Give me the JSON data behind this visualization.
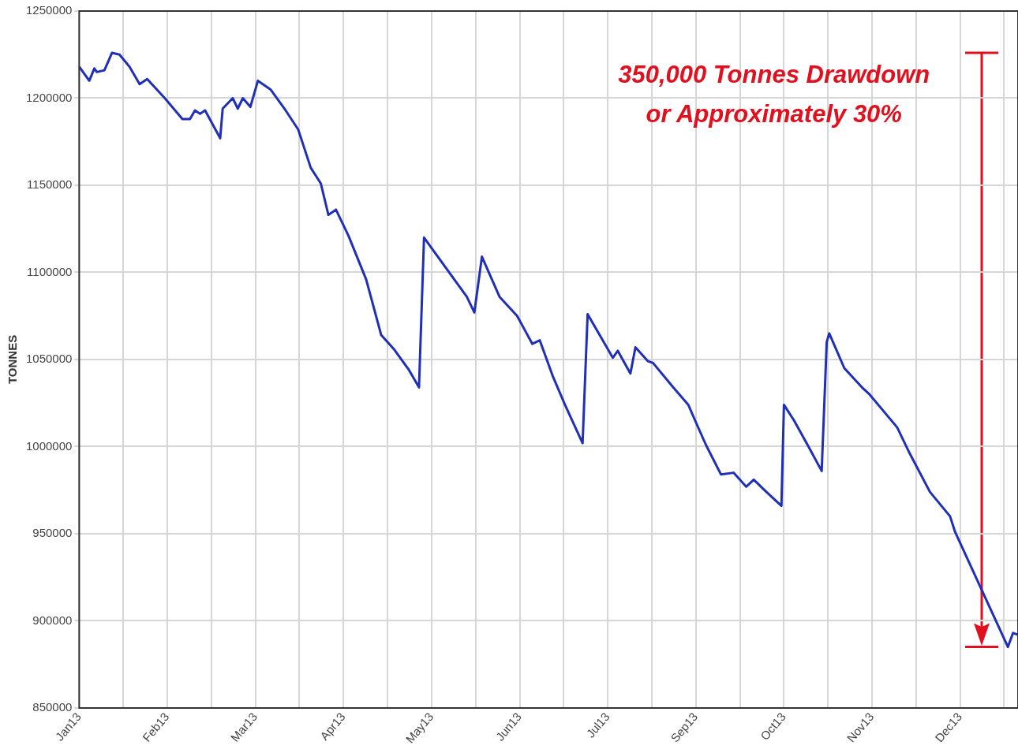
{
  "chart_data": {
    "type": "line",
    "ylabel": "TONNES",
    "xlim": [
      "2013-01-01",
      "2014-01-09"
    ],
    "xticks": [
      {
        "value": "2013-01-01",
        "label": "Jan13"
      },
      {
        "value": "2013-01-18T12:00",
        "label": null
      },
      {
        "value": "2013-02-05",
        "label": "Feb13"
      },
      {
        "value": "2013-02-22T12:00",
        "label": null
      },
      {
        "value": "2013-03-12",
        "label": "Mar13"
      },
      {
        "value": "2013-03-29T12:00",
        "label": null
      },
      {
        "value": "2013-04-16",
        "label": "Apr13"
      },
      {
        "value": "2013-05-03T12:00",
        "label": null
      },
      {
        "value": "2013-05-21",
        "label": "May13"
      },
      {
        "value": "2013-06-07T12:00",
        "label": null
      },
      {
        "value": "2013-06-25",
        "label": "Jun13"
      },
      {
        "value": "2013-07-12T12:00",
        "label": null
      },
      {
        "value": "2013-07-30",
        "label": "Jul13"
      },
      {
        "value": "2013-08-16T12:00",
        "label": null
      },
      {
        "value": "2013-09-03",
        "label": "Sep13"
      },
      {
        "value": "2013-09-20T12:00",
        "label": null
      },
      {
        "value": "2013-10-08",
        "label": "Oct13"
      },
      {
        "value": "2013-10-25T12:00",
        "label": null
      },
      {
        "value": "2013-11-12",
        "label": "Nov13"
      },
      {
        "value": "2013-11-29T12:00",
        "label": null
      },
      {
        "value": "2013-12-17",
        "label": "Dec13"
      },
      {
        "value": "2014-01-03T12:00",
        "label": null
      }
    ],
    "ylim": [
      850000,
      1250000
    ],
    "yticks": [
      850000,
      900000,
      950000,
      1000000,
      1050000,
      1100000,
      1150000,
      1200000,
      1250000
    ],
    "grid": true,
    "legend": false,
    "annotations": [
      "350,000 Tonnes Drawdown\nor Approximately 30%"
    ],
    "series": [
      {
        "color": "#1f2fb8",
        "x": [
          "2013-01-01",
          "2013-01-05",
          "2013-01-07",
          "2013-01-08",
          "2013-01-11",
          "2013-01-14",
          "2013-01-17",
          "2013-01-21",
          "2013-01-25",
          "2013-01-28",
          "2013-02-04",
          "2013-02-11",
          "2013-02-14",
          "2013-02-16",
          "2013-02-18",
          "2013-02-20",
          "2013-02-26",
          "2013-02-27",
          "2013-03-03",
          "2013-03-05",
          "2013-03-07",
          "2013-03-10",
          "2013-03-13",
          "2013-03-18",
          "2013-03-24",
          "2013-03-29",
          "2013-04-03",
          "2013-04-07",
          "2013-04-10",
          "2013-04-13",
          "2013-04-18",
          "2013-04-25",
          "2013-05-01",
          "2013-05-06",
          "2013-05-12",
          "2013-05-16",
          "2013-05-18",
          "2013-05-21",
          "2013-05-30",
          "2013-06-04",
          "2013-06-07",
          "2013-06-10",
          "2013-06-17",
          "2013-06-24",
          "2013-06-27",
          "2013-06-30",
          "2013-07-03",
          "2013-07-08",
          "2013-07-13",
          "2013-07-20",
          "2013-07-22",
          "2013-08-01",
          "2013-08-03",
          "2013-08-08",
          "2013-08-10",
          "2013-08-15",
          "2013-08-17",
          "2013-08-25",
          "2013-08-31",
          "2013-09-03",
          "2013-09-07",
          "2013-09-13",
          "2013-09-18",
          "2013-09-23",
          "2013-09-26",
          "2013-10-01",
          "2013-10-07",
          "2013-10-08",
          "2013-10-12",
          "2013-10-17",
          "2013-10-23",
          "2013-10-25",
          "2013-10-26",
          "2013-11-01",
          "2013-11-08",
          "2013-11-11",
          "2013-11-22",
          "2013-11-27",
          "2013-12-05",
          "2013-12-13",
          "2013-12-15",
          "2014-01-05",
          "2014-01-07",
          "2014-01-09"
        ],
        "values": [
          1218000,
          1210000,
          1217000,
          1215000,
          1216000,
          1226000,
          1225000,
          1218000,
          1208000,
          1211000,
          1200000,
          1188000,
          1188000,
          1193000,
          1191000,
          1193000,
          1177000,
          1194000,
          1200000,
          1194000,
          1200000,
          1195000,
          1210000,
          1205000,
          1193000,
          1182000,
          1160000,
          1151000,
          1133000,
          1136000,
          1121000,
          1096000,
          1064000,
          1056000,
          1044000,
          1034000,
          1120000,
          1114000,
          1096000,
          1086000,
          1077000,
          1109000,
          1086000,
          1075000,
          1067000,
          1059000,
          1061000,
          1041000,
          1024000,
          1002000,
          1076000,
          1051000,
          1055000,
          1042000,
          1057000,
          1049000,
          1048000,
          1034000,
          1024000,
          1014000,
          1001000,
          984000,
          985000,
          977000,
          981000,
          974000,
          966000,
          1024000,
          1015000,
          1002000,
          986000,
          1060000,
          1065000,
          1045000,
          1034000,
          1030000,
          1011000,
          996000,
          974000,
          960000,
          951000,
          885000,
          893000,
          892000
        ]
      }
    ]
  }
}
